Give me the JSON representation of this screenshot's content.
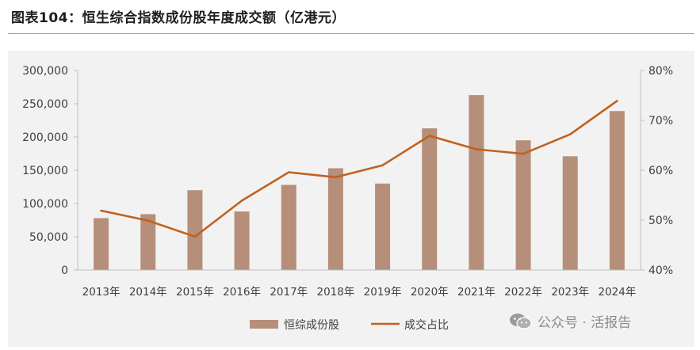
{
  "title": "图表104：恒生综合指数成份股年度成交额（亿港元）",
  "watermark": {
    "text": "公众号 · 活报告",
    "icon": "wechat-icon"
  },
  "colors": {
    "bar": "#b68f7a",
    "line": "#c0621f",
    "panel": "#f2f2f2"
  },
  "chart_data": {
    "type": "bar",
    "title": "图表104：恒生综合指数成份股年度成交额（亿港元）",
    "categories": [
      "2013年",
      "2014年",
      "2015年",
      "2016年",
      "2017年",
      "2018年",
      "2019年",
      "2020年",
      "2021年",
      "2022年",
      "2023年",
      "2024年"
    ],
    "series": [
      {
        "name": "恒综成份股",
        "type": "bar",
        "axis": "left",
        "values": [
          78000,
          84000,
          120000,
          88000,
          128000,
          153000,
          130000,
          213000,
          263000,
          195000,
          171000,
          239000
        ]
      },
      {
        "name": "成交占比",
        "type": "line",
        "axis": "right",
        "values": [
          0.519,
          0.499,
          0.467,
          0.539,
          0.596,
          0.586,
          0.61,
          0.669,
          0.642,
          0.633,
          0.672,
          0.739
        ]
      }
    ],
    "y_left": {
      "min": 0,
      "max": 300000,
      "ticks": [
        "0",
        "50,000",
        "100,000",
        "150,000",
        "200,000",
        "250,000",
        "300,000"
      ]
    },
    "y_right": {
      "min": 0.4,
      "max": 0.8,
      "ticks": [
        "40%",
        "50%",
        "60%",
        "70%",
        "80%"
      ]
    },
    "grid": false,
    "legend": {
      "position": "bottom",
      "entries": [
        "恒综成份股",
        "成交占比"
      ]
    }
  }
}
